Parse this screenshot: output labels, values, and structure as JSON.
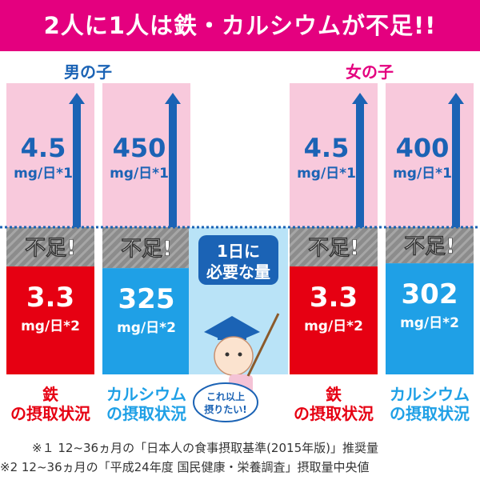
{
  "banner": {
    "title": "2人に1人は鉄・カルシウムが不足!!",
    "color": "#e4007f"
  },
  "groups": [
    {
      "label": "男の子",
      "color": "#1b63b5"
    },
    {
      "label": "女の子",
      "color": "#e4007f"
    }
  ],
  "chart_data": {
    "type": "bar",
    "categories": [
      "鉄 の摂取状況 (男の子)",
      "カルシウム の摂取状況 (男の子)",
      "鉄 の摂取状況 (女の子)",
      "カルシウム の摂取状況 (女の子)"
    ],
    "columns": [
      {
        "group": "男の子",
        "nutrient": "鉄",
        "required": 4.5,
        "intake": 3.3,
        "required_label": "4.5",
        "intake_label": "3.3",
        "unit": "mg/日",
        "required_note": "*1",
        "intake_note": "*2",
        "color": "#e60012",
        "caption_line1": "鉄",
        "caption_line2": "の摂取状況"
      },
      {
        "group": "男の子",
        "nutrient": "カルシウム",
        "required": 450,
        "intake": 325,
        "required_label": "450",
        "intake_label": "325",
        "unit": "mg/日",
        "required_note": "*1",
        "intake_note": "*2",
        "color": "#1fa0e6",
        "caption_line1": "カルシウム",
        "caption_line2": "の摂取状況"
      },
      {
        "group": "女の子",
        "nutrient": "鉄",
        "required": 4.5,
        "intake": 3.3,
        "required_label": "4.5",
        "intake_label": "3.3",
        "unit": "mg/日",
        "required_note": "*1",
        "intake_note": "*2",
        "color": "#e60012",
        "caption_line1": "鉄",
        "caption_line2": "の摂取状況"
      },
      {
        "group": "女の子",
        "nutrient": "カルシウム",
        "required": 400,
        "intake": 302,
        "required_label": "400",
        "intake_label": "302",
        "unit": "mg/日",
        "required_note": "*1",
        "intake_note": "*2",
        "color": "#1fa0e6",
        "caption_line1": "カルシウム",
        "caption_line2": "の摂取状況"
      }
    ],
    "shortage_label": "不足!",
    "required_line_label_1": "1日に",
    "required_line_label_2": "必要な量",
    "mascot_bubble_1": "これ以上",
    "mascot_bubble_2": "摂りたい!",
    "colors": {
      "required_bg": "#f8c9dc",
      "arrow": "#1b63b5",
      "shortage_bg": "#8c8c8c",
      "line": "#1b63b5",
      "iron": "#e60012",
      "calcium": "#1fa0e6",
      "text_blue": "#1b63b5",
      "label_bg": "#1b63b5"
    }
  },
  "footnotes": [
    "※１ 12~36ヵ月の「日本人の食事摂取基準(2015年版)」推奨量",
    "※2 12~36ヵ月の「平成24年度 国民健康・栄養調査」摂取量中央値"
  ]
}
